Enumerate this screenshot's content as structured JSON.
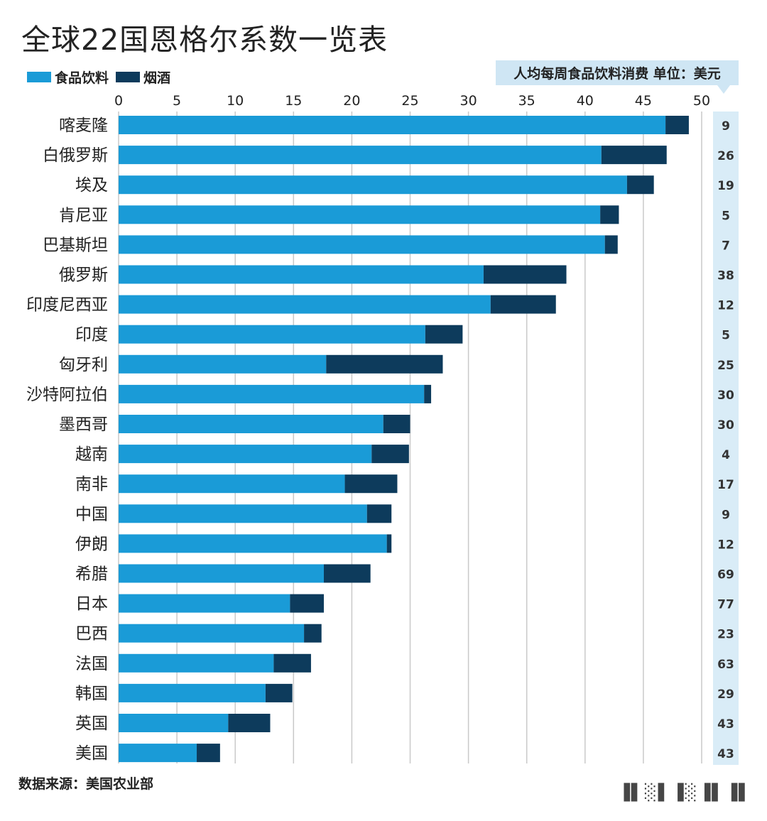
{
  "title": "全球22国恩格尔系数一览表",
  "legend": {
    "food": "食品饮料",
    "tobacco": "烟酒"
  },
  "right_header": "人均每周食品饮料消费  单位：美元",
  "source": "数据来源：美国农业部",
  "colors": {
    "food": "#1a9bd7",
    "tobacco": "#0d3b5c",
    "grid": "#c9c9c9",
    "value_bg": "#d9ecf7"
  },
  "chart_data": {
    "type": "bar",
    "orientation": "horizontal",
    "stacked": true,
    "title": "全球22国恩格尔系数一览表",
    "xlim": [
      0,
      50
    ],
    "xticks": [
      0,
      5,
      10,
      15,
      20,
      25,
      30,
      35,
      40,
      45,
      50
    ],
    "grid": true,
    "legend_position": "top-left",
    "categories": [
      "喀麦隆",
      "白俄罗斯",
      "埃及",
      "肯尼亚",
      "巴基斯坦",
      "俄罗斯",
      "印度尼西亚",
      "印度",
      "匈牙利",
      "沙特阿拉伯",
      "墨西哥",
      "越南",
      "南非",
      "中国",
      "伊朗",
      "希腊",
      "日本",
      "巴西",
      "法国",
      "韩国",
      "英国",
      "美国"
    ],
    "series": [
      {
        "name": "食品饮料",
        "values": [
          46.9,
          41.4,
          43.6,
          41.3,
          41.7,
          31.3,
          31.9,
          26.3,
          17.8,
          26.2,
          22.7,
          21.7,
          19.4,
          21.3,
          23.0,
          17.6,
          14.7,
          15.9,
          13.3,
          12.6,
          9.4,
          6.7
        ]
      },
      {
        "name": "烟酒",
        "values": [
          2.0,
          5.6,
          2.3,
          1.6,
          1.1,
          7.1,
          5.6,
          3.2,
          10.0,
          0.6,
          2.3,
          3.2,
          4.5,
          2.1,
          0.4,
          4.0,
          2.9,
          1.5,
          3.2,
          2.3,
          3.6,
          2.0
        ]
      }
    ],
    "weekly_spend_usd": [
      9,
      26,
      19,
      5,
      7,
      38,
      12,
      5,
      25,
      30,
      30,
      4,
      17,
      9,
      12,
      69,
      77,
      23,
      63,
      29,
      43,
      43
    ]
  }
}
